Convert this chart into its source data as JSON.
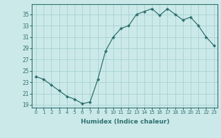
{
  "x": [
    0,
    1,
    2,
    3,
    4,
    5,
    6,
    7,
    8,
    9,
    10,
    11,
    12,
    13,
    14,
    15,
    16,
    17,
    18,
    19,
    20,
    21,
    22,
    23
  ],
  "y": [
    24.0,
    23.5,
    22.5,
    21.5,
    20.5,
    20.0,
    19.2,
    19.5,
    23.5,
    28.5,
    31.0,
    32.5,
    33.0,
    35.0,
    35.5,
    36.0,
    34.8,
    36.0,
    35.0,
    34.0,
    34.5,
    33.0,
    31.0,
    29.5
  ],
  "line_color": "#2e7070",
  "marker": "D",
  "marker_size": 2.0,
  "bg_color": "#cce9e9",
  "grid_color": "#aad4d4",
  "xlabel": "Humidex (Indice chaleur)",
  "yticks": [
    19,
    21,
    23,
    25,
    27,
    29,
    31,
    33,
    35
  ],
  "xticks": [
    0,
    1,
    2,
    3,
    4,
    5,
    6,
    7,
    8,
    9,
    10,
    11,
    12,
    13,
    14,
    15,
    16,
    17,
    18,
    19,
    20,
    21,
    22,
    23
  ],
  "ylim": [
    18.5,
    36.8
  ],
  "xlim": [
    -0.5,
    23.5
  ]
}
